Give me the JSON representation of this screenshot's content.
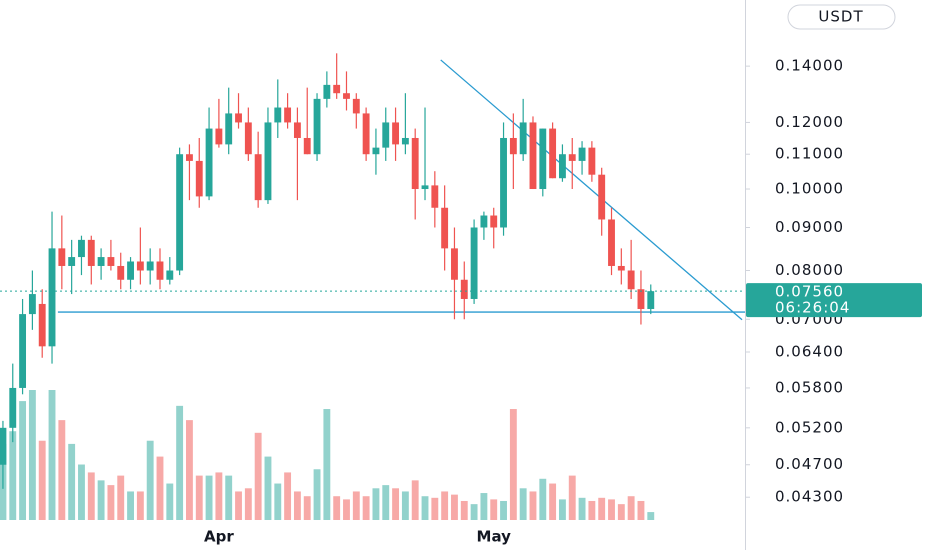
{
  "chart_data": {
    "type": "candlestick",
    "currency": "USDT",
    "log_scale": true,
    "categories": [
      null,
      null,
      null,
      null,
      null,
      null,
      null,
      null,
      null,
      null,
      null,
      null,
      null,
      null,
      null,
      null,
      null,
      null,
      null,
      null,
      null,
      null,
      "Apr",
      null,
      null,
      null,
      null,
      null,
      null,
      null,
      null,
      null,
      null,
      null,
      null,
      null,
      null,
      null,
      null,
      null,
      null,
      null,
      null,
      null,
      null,
      null,
      null,
      null,
      null,
      null,
      "May",
      null,
      null,
      null,
      null,
      null,
      null,
      null,
      null,
      null,
      null,
      null,
      null,
      null,
      null,
      null,
      null
    ],
    "open": [
      0.047,
      0.052,
      0.058,
      0.071,
      0.073,
      0.065,
      0.085,
      0.081,
      0.083,
      0.087,
      0.081,
      0.083,
      0.081,
      0.078,
      0.082,
      0.08,
      0.082,
      0.078,
      0.08,
      0.11,
      0.108,
      0.098,
      0.118,
      0.113,
      0.123,
      0.12,
      0.11,
      0.097,
      0.12,
      0.125,
      0.12,
      0.115,
      0.11,
      0.128,
      0.133,
      0.13,
      0.128,
      0.123,
      0.11,
      0.112,
      0.12,
      0.113,
      0.115,
      0.1,
      0.101,
      0.095,
      0.085,
      0.078,
      0.074,
      0.09,
      0.093,
      0.09,
      0.115,
      0.11,
      0.12,
      0.1,
      0.118,
      0.103,
      0.11,
      0.108,
      0.112,
      0.104,
      0.092,
      0.081,
      0.08,
      0.076,
      0.072
    ],
    "high": [
      0.053,
      0.062,
      0.074,
      0.08,
      0.076,
      0.094,
      0.093,
      0.087,
      0.088,
      0.088,
      0.085,
      0.087,
      0.084,
      0.083,
      0.09,
      0.085,
      0.085,
      0.083,
      0.112,
      0.113,
      0.115,
      0.125,
      0.128,
      0.132,
      0.13,
      0.125,
      0.117,
      0.125,
      0.135,
      0.13,
      0.125,
      0.132,
      0.13,
      0.138,
      0.145,
      0.138,
      0.13,
      0.125,
      0.118,
      0.125,
      0.125,
      0.13,
      0.118,
      0.125,
      0.105,
      0.101,
      0.09,
      0.082,
      0.092,
      0.094,
      0.095,
      0.12,
      0.123,
      0.128,
      0.122,
      0.118,
      0.12,
      0.113,
      0.115,
      0.114,
      0.114,
      0.106,
      0.095,
      0.085,
      0.087,
      0.08,
      0.077
    ],
    "low": [
      0.044,
      0.05,
      0.057,
      0.068,
      0.063,
      0.062,
      0.076,
      0.075,
      0.079,
      0.077,
      0.078,
      0.08,
      0.076,
      0.076,
      0.077,
      0.077,
      0.076,
      0.077,
      0.079,
      0.097,
      0.095,
      0.097,
      0.112,
      0.11,
      0.118,
      0.108,
      0.095,
      0.096,
      0.115,
      0.118,
      0.097,
      0.11,
      0.108,
      0.125,
      0.128,
      0.124,
      0.118,
      0.108,
      0.104,
      0.108,
      0.108,
      0.11,
      0.092,
      0.097,
      0.09,
      0.08,
      0.07,
      0.07,
      0.073,
      0.087,
      0.085,
      0.088,
      0.1,
      0.108,
      0.1,
      0.098,
      0.103,
      0.102,
      0.1,
      0.104,
      0.102,
      0.088,
      0.079,
      0.077,
      0.074,
      0.069,
      0.071
    ],
    "close": [
      0.052,
      0.058,
      0.071,
      0.075,
      0.065,
      0.085,
      0.081,
      0.083,
      0.087,
      0.081,
      0.083,
      0.081,
      0.078,
      0.082,
      0.08,
      0.082,
      0.078,
      0.08,
      0.11,
      0.108,
      0.098,
      0.118,
      0.113,
      0.123,
      0.12,
      0.11,
      0.097,
      0.12,
      0.125,
      0.12,
      0.115,
      0.11,
      0.128,
      0.133,
      0.13,
      0.128,
      0.123,
      0.11,
      0.112,
      0.12,
      0.113,
      0.115,
      0.1,
      0.101,
      0.095,
      0.085,
      0.078,
      0.074,
      0.09,
      0.093,
      0.09,
      0.115,
      0.11,
      0.12,
      0.1,
      0.118,
      0.103,
      0.11,
      0.108,
      0.112,
      0.104,
      0.092,
      0.081,
      0.08,
      0.076,
      0.072,
      0.0756
    ],
    "volume": [
      48,
      56,
      75,
      82,
      50,
      82,
      63,
      48,
      35,
      30,
      25,
      22,
      28,
      18,
      18,
      50,
      40,
      23,
      72,
      63,
      28,
      28,
      30,
      28,
      18,
      20,
      55,
      40,
      23,
      30,
      18,
      15,
      32,
      70,
      15,
      13,
      18,
      15,
      20,
      22,
      20,
      18,
      25,
      15,
      14,
      18,
      16,
      12,
      10,
      17,
      13,
      12,
      70,
      20,
      18,
      26,
      23,
      13,
      28,
      14,
      12,
      14,
      13,
      10,
      15,
      12,
      5
    ],
    "up_color": "#26a69a",
    "down_color": "#ef5350",
    "xlim": [
      -0.3,
      75.6
    ],
    "ylim": [
      0.0404,
      0.1678
    ],
    "yticks": [
      {
        "value": 0.14,
        "label": "0.14000"
      },
      {
        "value": 0.12,
        "label": "0.12000"
      },
      {
        "value": 0.11,
        "label": "0.11000"
      },
      {
        "value": 0.1,
        "label": "0.10000"
      },
      {
        "value": 0.09,
        "label": "0.09000"
      },
      {
        "value": 0.08,
        "label": "0.08000"
      },
      {
        "value": 0.07,
        "label": "0.07000"
      },
      {
        "value": 0.064,
        "label": "0.06400"
      },
      {
        "value": 0.058,
        "label": "0.05800"
      },
      {
        "value": 0.052,
        "label": "0.05200"
      },
      {
        "value": 0.047,
        "label": "0.04700"
      },
      {
        "value": 0.043,
        "label": "0.04300"
      }
    ],
    "last_price": {
      "value": 0.0756,
      "label": "0.07560"
    },
    "countdown": "06:26:04",
    "trend_lines": [
      {
        "color": "#2a9bd0",
        "x": [
          5.6,
          75.6
        ],
        "y": [
          0.0714,
          0.0714
        ]
      },
      {
        "color": "#2a9bd0",
        "x": [
          44.6,
          75.3
        ],
        "y": [
          0.1424,
          0.0699
        ]
      }
    ]
  }
}
